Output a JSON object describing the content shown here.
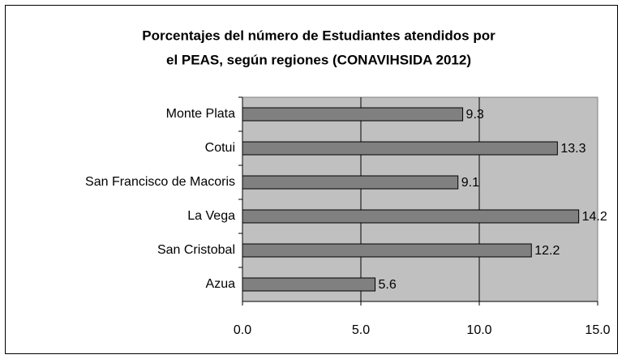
{
  "chart_data": {
    "type": "bar",
    "orientation": "horizontal",
    "title": [
      "Porcentajes del número de Estudiantes atendidos por",
      "el PEAS, según regiones (CONAVIHSIDA 2012)"
    ],
    "categories": [
      "Monte Plata",
      "Cotui",
      "San Francisco de Macoris",
      "La Vega",
      "San Cristobal",
      "Azua"
    ],
    "values": [
      9.3,
      13.3,
      9.1,
      14.2,
      12.2,
      5.6
    ],
    "color": "#808080",
    "background": "#c0c0c0",
    "xlim": [
      0,
      15
    ],
    "xticks": [
      {
        "value": 0,
        "label": "0.0"
      },
      {
        "value": 5,
        "label": "5.0"
      },
      {
        "value": 10,
        "label": "10.0"
      },
      {
        "value": 15,
        "label": "15.0"
      }
    ],
    "grid": true
  }
}
